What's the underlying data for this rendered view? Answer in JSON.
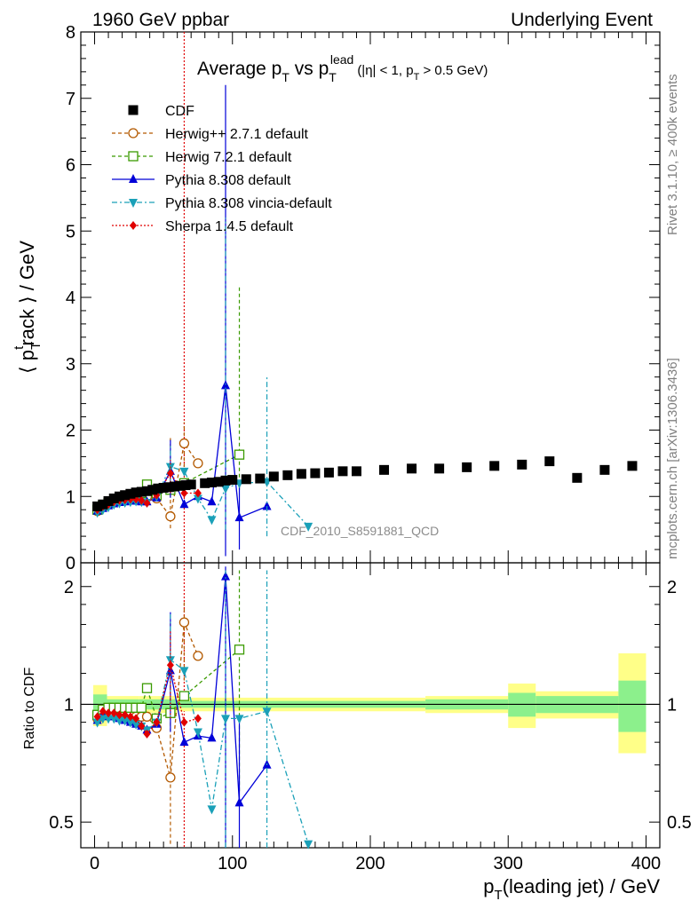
{
  "header": {
    "left": "1960 GeV ppbar",
    "right": "Underlying Event"
  },
  "side_labels": {
    "rivet": "Rivet 3.1.10, ≥ 400k events",
    "mcplots": "mcplots.cern.ch [arXiv:1306.3436]"
  },
  "analysis_id": "CDF_2010_S8591881_QCD",
  "chart_data": [
    {
      "type": "scatter",
      "panel": "main",
      "title": {
        "main": "Average p",
        "sub1": "T",
        "mid": " vs p",
        "sub2": "T",
        "sup2": "lead",
        "cut": "(|η| < 1, p",
        "cut_sub": "T",
        "cut_end": " > 0.5 GeV)"
      },
      "ylabel": {
        "pre": "⟨ p",
        "sup": "t",
        "sub": "T",
        "post": "rack ⟩ / GeV"
      },
      "xlim": [
        -10,
        410
      ],
      "ylim": [
        0,
        8
      ],
      "yticks": [
        "0",
        "1",
        "2",
        "3",
        "4",
        "5",
        "6",
        "7",
        "8"
      ],
      "vline_x": 65,
      "series": [
        {
          "name": "CDF",
          "color": "#000000",
          "marker": "square",
          "dash": "none",
          "points": [
            [
              2,
              0.85
            ],
            [
              6,
              0.88
            ],
            [
              10,
              0.93
            ],
            [
              14,
              0.97
            ],
            [
              18,
              1.0
            ],
            [
              22,
              1.02
            ],
            [
              26,
              1.04
            ],
            [
              30,
              1.06
            ],
            [
              34,
              1.07
            ],
            [
              38,
              1.08
            ],
            [
              42,
              1.1
            ],
            [
              46,
              1.12
            ],
            [
              50,
              1.13
            ],
            [
              54,
              1.14
            ],
            [
              58,
              1.15
            ],
            [
              62,
              1.16
            ],
            [
              66,
              1.17
            ],
            [
              70,
              1.18
            ],
            [
              80,
              1.2
            ],
            [
              85,
              1.21
            ],
            [
              90,
              1.22
            ],
            [
              95,
              1.24
            ],
            [
              100,
              1.25
            ],
            [
              110,
              1.26
            ],
            [
              120,
              1.27
            ],
            [
              130,
              1.3
            ],
            [
              140,
              1.32
            ],
            [
              150,
              1.34
            ],
            [
              160,
              1.35
            ],
            [
              170,
              1.36
            ],
            [
              180,
              1.38
            ],
            [
              190,
              1.38
            ],
            [
              210,
              1.4
            ],
            [
              230,
              1.42
            ],
            [
              250,
              1.42
            ],
            [
              270,
              1.44
            ],
            [
              290,
              1.46
            ],
            [
              310,
              1.48
            ],
            [
              330,
              1.53
            ],
            [
              350,
              1.28
            ],
            [
              370,
              1.4
            ],
            [
              390,
              1.46
            ]
          ]
        },
        {
          "name": "Herwig++ 2.7.1 default",
          "color": "#b35900",
          "marker": "circle-open",
          "dash": "4,3",
          "points": [
            [
              2,
              0.78
            ],
            [
              6,
              0.84
            ],
            [
              10,
              0.88
            ],
            [
              14,
              0.92
            ],
            [
              18,
              0.95
            ],
            [
              22,
              0.97
            ],
            [
              26,
              0.98
            ],
            [
              30,
              0.99
            ],
            [
              34,
              1.0
            ],
            [
              38,
              1.0
            ],
            [
              45,
              0.97
            ],
            [
              55,
              0.7
            ],
            [
              65,
              1.8
            ],
            [
              75,
              1.5
            ]
          ],
          "errors": [
            [
              55,
              0.52,
              1.88
            ],
            [
              65,
              1.35,
              2.12
            ]
          ]
        },
        {
          "name": "Herwig 7.2.1 default",
          "color": "#3a9a00",
          "marker": "square-open",
          "dash": "4,3",
          "points": [
            [
              2,
              0.8
            ],
            [
              6,
              0.86
            ],
            [
              10,
              0.9
            ],
            [
              14,
              0.93
            ],
            [
              18,
              0.96
            ],
            [
              22,
              0.98
            ],
            [
              26,
              1.0
            ],
            [
              30,
              1.02
            ],
            [
              34,
              1.05
            ],
            [
              38,
              1.18
            ],
            [
              45,
              1.02
            ],
            [
              55,
              1.1
            ],
            [
              65,
              1.2
            ],
            [
              105,
              1.63
            ]
          ],
          "errors": [
            [
              105,
              1.1,
              4.15
            ]
          ]
        },
        {
          "name": "Pythia 8.308 default",
          "color": "#0000d8",
          "marker": "triangle-up",
          "dash": "none",
          "points": [
            [
              2,
              0.78
            ],
            [
              6,
              0.82
            ],
            [
              10,
              0.86
            ],
            [
              14,
              0.89
            ],
            [
              18,
              0.91
            ],
            [
              22,
              0.92
            ],
            [
              26,
              0.93
            ],
            [
              30,
              0.93
            ],
            [
              34,
              0.92
            ],
            [
              38,
              0.92
            ],
            [
              45,
              0.98
            ],
            [
              55,
              1.38
            ],
            [
              65,
              0.88
            ],
            [
              75,
              1.0
            ],
            [
              85,
              0.92
            ],
            [
              95,
              2.67
            ],
            [
              105,
              0.68
            ],
            [
              125,
              0.85
            ]
          ],
          "errors": [
            [
              55,
              0.98,
              1.85
            ],
            [
              95,
              0.1,
              7.2
            ],
            [
              105,
              0.2,
              1.25
            ]
          ]
        },
        {
          "name": "Pythia 8.308 vincia-default",
          "color": "#1aa0b8",
          "marker": "triangle-down",
          "dash": "6,3,2,3",
          "points": [
            [
              2,
              0.76
            ],
            [
              6,
              0.8
            ],
            [
              10,
              0.84
            ],
            [
              14,
              0.88
            ],
            [
              18,
              0.9
            ],
            [
              22,
              0.91
            ],
            [
              26,
              0.92
            ],
            [
              30,
              0.93
            ],
            [
              34,
              0.92
            ],
            [
              38,
              0.91
            ],
            [
              45,
              1.0
            ],
            [
              55,
              1.45
            ],
            [
              65,
              1.38
            ],
            [
              75,
              0.97
            ],
            [
              85,
              0.65
            ],
            [
              95,
              1.12
            ],
            [
              105,
              1.2
            ],
            [
              125,
              1.22
            ],
            [
              155,
              0.55
            ]
          ],
          "errors": [
            [
              55,
              1.05,
              1.78
            ],
            [
              95,
              0.5,
              5.2
            ],
            [
              125,
              0.4,
              2.82
            ]
          ]
        },
        {
          "name": "Sherpa 1.4.5 default",
          "color": "#e00000",
          "marker": "diamond",
          "dash": "2,2",
          "points": [
            [
              2,
              0.8
            ],
            [
              6,
              0.85
            ],
            [
              10,
              0.88
            ],
            [
              14,
              0.92
            ],
            [
              18,
              0.94
            ],
            [
              22,
              0.95
            ],
            [
              26,
              0.96
            ],
            [
              30,
              0.96
            ],
            [
              34,
              0.94
            ],
            [
              38,
              0.9
            ],
            [
              45,
              1.02
            ],
            [
              55,
              1.35
            ],
            [
              65,
              1.05
            ],
            [
              75,
              1.05
            ]
          ],
          "errors": [
            [
              55,
              1.05,
              1.55
            ]
          ]
        }
      ]
    },
    {
      "type": "scatter",
      "panel": "ratio",
      "ylabel": "Ratio to CDF",
      "xlabel": {
        "pre": "p",
        "sub": "T",
        "post": "(leading jet) / GeV"
      },
      "xlim": [
        -10,
        410
      ],
      "ylim": [
        0.43,
        2.3
      ],
      "log_y": true,
      "yticks": [
        "0.5",
        "1",
        "2"
      ],
      "xticks": [
        "0",
        "100",
        "200",
        "300",
        "400"
      ],
      "series": [
        {
          "name": "Herwig++ 2.7.1 default",
          "color": "#b35900",
          "marker": "circle-open",
          "dash": "4,3",
          "points": [
            [
              2,
              0.92
            ],
            [
              6,
              0.95
            ],
            [
              10,
              0.95
            ],
            [
              14,
              0.95
            ],
            [
              18,
              0.95
            ],
            [
              22,
              0.95
            ],
            [
              26,
              0.94
            ],
            [
              30,
              0.93
            ],
            [
              34,
              0.93
            ],
            [
              38,
              0.93
            ],
            [
              45,
              0.87
            ],
            [
              55,
              0.65
            ],
            [
              65,
              1.62
            ],
            [
              75,
              1.33
            ]
          ],
          "errors": [
            [
              55,
              0.44,
              1.62
            ],
            [
              65,
              1.15,
              1.85
            ]
          ]
        },
        {
          "name": "Herwig 7.2.1 default",
          "color": "#3a9a00",
          "marker": "square-open",
          "dash": "4,3",
          "points": [
            [
              2,
              0.94
            ],
            [
              6,
              0.97
            ],
            [
              10,
              0.98
            ],
            [
              14,
              0.98
            ],
            [
              18,
              0.98
            ],
            [
              22,
              0.98
            ],
            [
              26,
              0.98
            ],
            [
              30,
              0.98
            ],
            [
              34,
              0.98
            ],
            [
              38,
              1.1
            ],
            [
              45,
              0.92
            ],
            [
              55,
              0.95
            ],
            [
              65,
              1.05
            ],
            [
              105,
              1.38
            ]
          ],
          "errors": [
            [
              105,
              0.6,
              2.2
            ]
          ]
        },
        {
          "name": "Pythia 8.308 default",
          "color": "#0000d8",
          "marker": "triangle-up",
          "dash": "none",
          "points": [
            [
              2,
              0.91
            ],
            [
              6,
              0.94
            ],
            [
              10,
              0.93
            ],
            [
              14,
              0.93
            ],
            [
              18,
              0.92
            ],
            [
              22,
              0.91
            ],
            [
              26,
              0.9
            ],
            [
              30,
              0.89
            ],
            [
              34,
              0.88
            ],
            [
              38,
              0.86
            ],
            [
              45,
              0.89
            ],
            [
              55,
              1.22
            ],
            [
              65,
              0.8
            ],
            [
              75,
              0.83
            ],
            [
              85,
              0.82
            ],
            [
              95,
              2.12
            ],
            [
              105,
              0.56
            ],
            [
              125,
              0.7
            ]
          ],
          "errors": [
            [
              55,
              0.85,
              1.72
            ],
            [
              95,
              0.43,
              2.25
            ],
            [
              105,
              0.43,
              0.92
            ]
          ]
        },
        {
          "name": "Pythia 8.308 vincia-default",
          "color": "#1aa0b8",
          "marker": "triangle-down",
          "dash": "6,3,2,3",
          "points": [
            [
              2,
              0.9
            ],
            [
              6,
              0.92
            ],
            [
              10,
              0.92
            ],
            [
              14,
              0.92
            ],
            [
              18,
              0.91
            ],
            [
              22,
              0.91
            ],
            [
              26,
              0.9
            ],
            [
              30,
              0.89
            ],
            [
              34,
              0.88
            ],
            [
              38,
              0.86
            ],
            [
              45,
              0.9
            ],
            [
              55,
              1.3
            ],
            [
              65,
              1.22
            ],
            [
              75,
              0.85
            ],
            [
              85,
              0.54
            ],
            [
              95,
              0.92
            ],
            [
              105,
              0.92
            ],
            [
              125,
              0.96
            ],
            [
              155,
              0.44
            ]
          ],
          "errors": [
            [
              55,
              0.92,
              1.7
            ],
            [
              95,
              0.43,
              2.2
            ],
            [
              125,
              0.43,
              2.2
            ]
          ]
        },
        {
          "name": "Sherpa 1.4.5 default",
          "color": "#e00000",
          "marker": "diamond",
          "dash": "2,2",
          "points": [
            [
              2,
              0.93
            ],
            [
              6,
              0.96
            ],
            [
              10,
              0.95
            ],
            [
              14,
              0.95
            ],
            [
              18,
              0.94
            ],
            [
              22,
              0.94
            ],
            [
              26,
              0.93
            ],
            [
              30,
              0.92
            ],
            [
              34,
              0.88
            ],
            [
              38,
              0.84
            ],
            [
              45,
              0.9
            ],
            [
              55,
              1.26
            ],
            [
              65,
              0.9
            ],
            [
              75,
              0.92
            ]
          ],
          "errors": [
            [
              55,
              0.92,
              1.55
            ]
          ]
        }
      ],
      "cdf_bands": [
        [
          -1,
          9,
          0.94,
          1.06,
          0.88,
          1.12
        ],
        [
          9,
          32,
          0.97,
          1.03,
          0.95,
          1.05
        ],
        [
          32,
          60,
          0.97,
          1.03,
          0.95,
          1.05
        ],
        [
          60,
          240,
          0.98,
          1.02,
          0.96,
          1.04
        ],
        [
          240,
          300,
          0.97,
          1.03,
          0.95,
          1.05
        ],
        [
          300,
          320,
          0.93,
          1.07,
          0.87,
          1.13
        ],
        [
          320,
          380,
          0.95,
          1.05,
          0.92,
          1.08
        ],
        [
          380,
          400,
          0.85,
          1.15,
          0.75,
          1.35
        ]
      ]
    }
  ]
}
